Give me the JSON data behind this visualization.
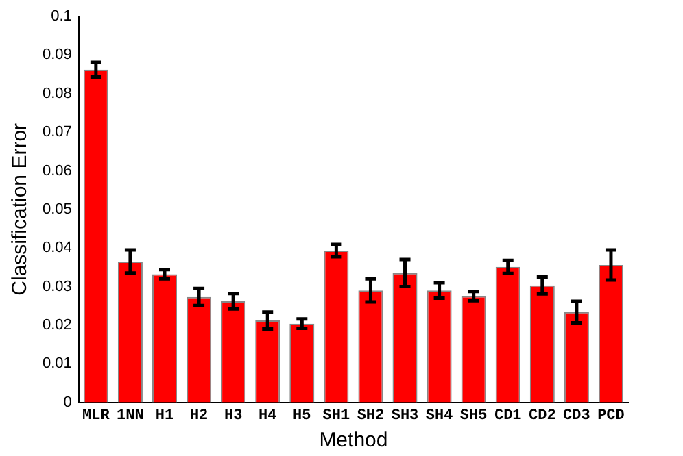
{
  "chart_data": {
    "type": "bar",
    "xlabel": "Method",
    "ylabel": "Classification Error",
    "categories": [
      "MLR",
      "1NN",
      "H1",
      "H2",
      "H3",
      "H4",
      "H5",
      "SH1",
      "SH2",
      "SH3",
      "SH4",
      "SH5",
      "CD1",
      "CD2",
      "CD3",
      "PCD"
    ],
    "values": [
      0.0862,
      0.0365,
      0.0332,
      0.0273,
      0.0262,
      0.0212,
      0.0204,
      0.0393,
      0.029,
      0.0335,
      0.029,
      0.0275,
      0.0351,
      0.0303,
      0.0234,
      0.0356
    ],
    "errors": [
      0.0019,
      0.003,
      0.0012,
      0.0022,
      0.002,
      0.0022,
      0.0012,
      0.0016,
      0.003,
      0.0035,
      0.002,
      0.0012,
      0.0017,
      0.0022,
      0.0028,
      0.0039
    ],
    "color": "#ff0000",
    "ylim": [
      0,
      0.1
    ],
    "yticks": [
      0,
      0.01,
      0.02,
      0.03,
      0.04,
      0.05,
      0.06,
      0.07,
      0.08,
      0.09,
      {
        "value": 0.1,
        "label": "0.1"
      }
    ],
    "grid": false
  }
}
